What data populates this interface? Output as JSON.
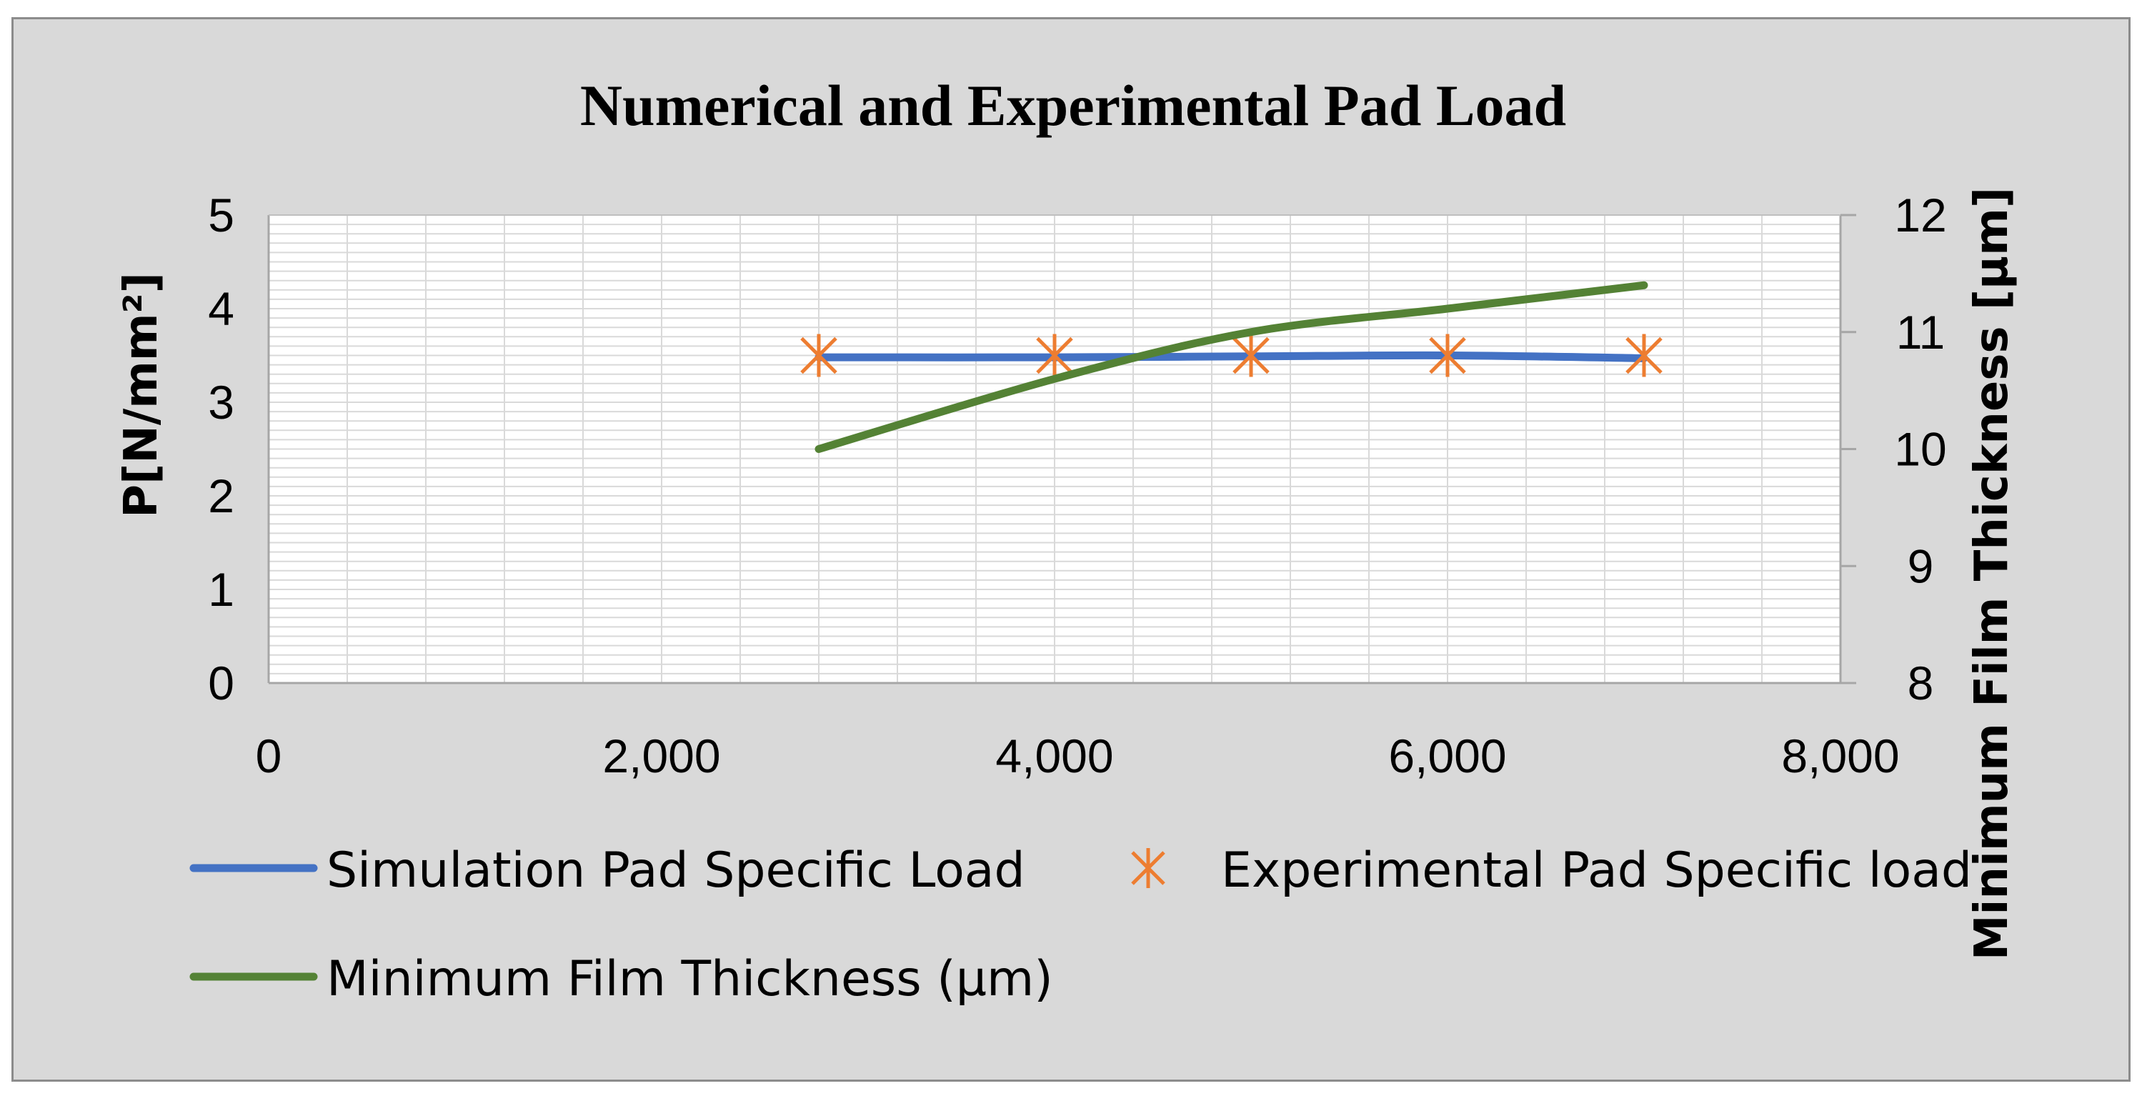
{
  "chart_data": {
    "type": "line",
    "title": "Numerical and Experimental Pad Load",
    "xlabel": "",
    "ylabel": "P[N/mm²]",
    "y2label": "Minimum Film Thickness [µm]",
    "xlim": [
      0,
      8000
    ],
    "ylim": [
      0,
      5
    ],
    "y2lim": [
      8,
      12
    ],
    "x_ticks": [
      "0",
      "2,000",
      "4,000",
      "6,000",
      "8,000"
    ],
    "y_ticks": [
      "0",
      "1",
      "2",
      "3",
      "4",
      "5"
    ],
    "y2_ticks": [
      "8",
      "9",
      "10",
      "11",
      "12"
    ],
    "grid": true,
    "legend_position": "bottom",
    "series": [
      {
        "name": "Simulation Pad Specific Load",
        "kind": "line",
        "axis": "left",
        "color": "#4472c4",
        "x": [
          2800,
          4000,
          5000,
          6000,
          7000
        ],
        "y": [
          3.48,
          3.48,
          3.49,
          3.5,
          3.47
        ]
      },
      {
        "name": "Experimental Pad Specific load",
        "kind": "marker",
        "axis": "left",
        "color": "#ed7d31",
        "x": [
          2800,
          4000,
          5000,
          6000,
          7000
        ],
        "y": [
          3.5,
          3.5,
          3.5,
          3.5,
          3.5
        ]
      },
      {
        "name": "Minimum Film Thickness (µm)",
        "kind": "line",
        "axis": "right",
        "color": "#548235",
        "x": [
          2800,
          4000,
          5000,
          6000,
          7000
        ],
        "y": [
          10.0,
          10.6,
          11.0,
          11.2,
          11.4
        ]
      }
    ]
  }
}
